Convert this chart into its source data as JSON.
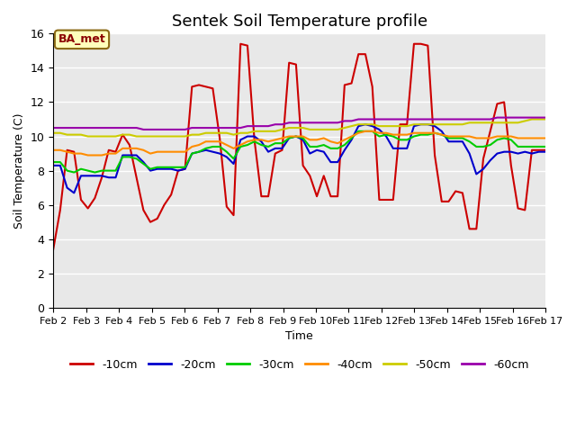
{
  "title": "Sentek Soil Temperature profile",
  "xlabel": "Time",
  "ylabel": "Soil Temperature (C)",
  "ylim": [
    0,
    16
  ],
  "yticks": [
    0,
    2,
    4,
    6,
    8,
    10,
    12,
    14,
    16
  ],
  "xtick_labels": [
    "Feb 2",
    "Feb 3",
    "Feb 4",
    "Feb 5",
    "Feb 6",
    "Feb 7",
    "Feb 8",
    "Feb 9",
    "Feb 10",
    "Feb 11",
    "Feb 12",
    "Feb 13",
    "Feb 14",
    "Feb 15",
    "Feb 16",
    "Feb 17"
  ],
  "annotation_text": "BA_met",
  "background_color": "#e8e8e8",
  "title_fontsize": 13,
  "tick_fontsize": 8,
  "series": {
    "-10cm": {
      "color": "#cc0000",
      "linewidth": 1.5,
      "values": [
        3.4,
        5.7,
        9.2,
        9.1,
        6.3,
        5.8,
        6.4,
        7.6,
        9.2,
        9.1,
        10.1,
        9.5,
        7.6,
        5.7,
        5.0,
        5.2,
        6.0,
        6.6,
        8.0,
        8.1,
        12.9,
        13.0,
        12.9,
        12.8,
        9.9,
        5.9,
        5.4,
        15.4,
        15.3,
        9.8,
        6.5,
        6.5,
        9.0,
        9.2,
        14.3,
        14.2,
        8.3,
        7.7,
        6.5,
        7.7,
        6.5,
        6.5,
        13.0,
        13.1,
        14.8,
        14.8,
        12.9,
        6.3,
        6.3,
        6.3,
        10.7,
        10.7,
        15.4,
        15.4,
        15.3,
        8.9,
        6.2,
        6.2,
        6.8,
        6.7,
        4.6,
        4.6,
        8.7,
        10.3,
        11.9,
        12.0,
        8.3,
        5.8,
        5.7,
        9.2,
        9.2,
        9.2
      ]
    },
    "-20cm": {
      "color": "#0000cc",
      "linewidth": 1.5,
      "values": [
        8.3,
        8.3,
        7.0,
        6.7,
        7.7,
        7.7,
        7.7,
        7.7,
        7.6,
        7.6,
        8.9,
        8.9,
        8.9,
        8.5,
        8.0,
        8.1,
        8.1,
        8.1,
        8.0,
        8.1,
        9.0,
        9.1,
        9.2,
        9.1,
        9.0,
        8.8,
        8.4,
        9.8,
        10.0,
        10.0,
        9.7,
        9.1,
        9.3,
        9.3,
        9.9,
        10.0,
        9.8,
        9.0,
        9.2,
        9.1,
        8.5,
        8.5,
        9.2,
        9.8,
        10.6,
        10.7,
        10.6,
        10.4,
        10.0,
        9.3,
        9.3,
        9.3,
        10.6,
        10.7,
        10.7,
        10.6,
        10.3,
        9.7,
        9.7,
        9.7,
        9.0,
        7.8,
        8.1,
        8.6,
        9.0,
        9.1,
        9.1,
        9.0,
        9.1,
        9.0,
        9.1,
        9.1
      ]
    },
    "-30cm": {
      "color": "#00cc00",
      "linewidth": 1.5,
      "values": [
        8.5,
        8.5,
        8.0,
        7.9,
        8.1,
        8.0,
        7.9,
        8.0,
        8.0,
        8.0,
        8.8,
        8.8,
        8.7,
        8.4,
        8.1,
        8.2,
        8.2,
        8.2,
        8.2,
        8.2,
        9.0,
        9.1,
        9.3,
        9.4,
        9.4,
        9.1,
        8.7,
        9.4,
        9.5,
        9.7,
        9.5,
        9.4,
        9.6,
        9.6,
        9.9,
        10.0,
        9.9,
        9.4,
        9.4,
        9.5,
        9.3,
        9.3,
        9.5,
        9.9,
        10.3,
        10.3,
        10.3,
        10.0,
        10.1,
        10.0,
        9.8,
        9.8,
        10.0,
        10.1,
        10.1,
        10.2,
        10.1,
        9.9,
        9.9,
        9.9,
        9.7,
        9.4,
        9.4,
        9.5,
        9.8,
        9.9,
        9.8,
        9.4,
        9.4,
        9.4,
        9.4,
        9.4
      ]
    },
    "-40cm": {
      "color": "#ff8c00",
      "linewidth": 1.5,
      "values": [
        9.2,
        9.2,
        9.1,
        9.0,
        9.0,
        8.9,
        8.9,
        8.9,
        9.0,
        9.0,
        9.3,
        9.3,
        9.3,
        9.2,
        9.0,
        9.1,
        9.1,
        9.1,
        9.1,
        9.1,
        9.4,
        9.5,
        9.7,
        9.7,
        9.7,
        9.5,
        9.3,
        9.5,
        9.7,
        9.8,
        9.8,
        9.7,
        9.8,
        9.9,
        10.0,
        10.0,
        10.0,
        9.8,
        9.8,
        9.9,
        9.7,
        9.6,
        9.8,
        10.0,
        10.2,
        10.3,
        10.3,
        10.2,
        10.2,
        10.1,
        10.1,
        10.1,
        10.2,
        10.2,
        10.2,
        10.2,
        10.1,
        10.0,
        10.0,
        10.0,
        10.0,
        9.9,
        9.9,
        9.9,
        10.0,
        10.0,
        10.0,
        9.9,
        9.9,
        9.9,
        9.9,
        9.9
      ]
    },
    "-50cm": {
      "color": "#cccc00",
      "linewidth": 1.5,
      "values": [
        10.2,
        10.2,
        10.1,
        10.1,
        10.1,
        10.0,
        10.0,
        10.0,
        10.0,
        10.0,
        10.1,
        10.1,
        10.0,
        10.0,
        10.0,
        10.0,
        10.0,
        10.0,
        10.0,
        10.0,
        10.1,
        10.1,
        10.2,
        10.2,
        10.2,
        10.2,
        10.1,
        10.2,
        10.2,
        10.3,
        10.3,
        10.3,
        10.3,
        10.4,
        10.5,
        10.5,
        10.5,
        10.4,
        10.4,
        10.4,
        10.4,
        10.4,
        10.5,
        10.6,
        10.7,
        10.7,
        10.7,
        10.6,
        10.6,
        10.6,
        10.6,
        10.6,
        10.7,
        10.7,
        10.7,
        10.7,
        10.7,
        10.7,
        10.7,
        10.7,
        10.8,
        10.8,
        10.8,
        10.8,
        10.8,
        10.8,
        10.8,
        10.8,
        10.9,
        11.0,
        11.0,
        11.0
      ]
    },
    "-60cm": {
      "color": "#9900aa",
      "linewidth": 1.5,
      "values": [
        10.5,
        10.5,
        10.5,
        10.5,
        10.5,
        10.5,
        10.5,
        10.5,
        10.5,
        10.5,
        10.5,
        10.5,
        10.5,
        10.4,
        10.4,
        10.4,
        10.4,
        10.4,
        10.4,
        10.4,
        10.5,
        10.5,
        10.5,
        10.5,
        10.5,
        10.5,
        10.5,
        10.5,
        10.6,
        10.6,
        10.6,
        10.6,
        10.7,
        10.7,
        10.8,
        10.8,
        10.8,
        10.8,
        10.8,
        10.8,
        10.8,
        10.8,
        10.9,
        10.9,
        11.0,
        11.0,
        11.0,
        11.0,
        11.0,
        11.0,
        11.0,
        11.0,
        11.0,
        11.0,
        11.0,
        11.0,
        11.0,
        11.0,
        11.0,
        11.0,
        11.0,
        11.0,
        11.0,
        11.0,
        11.1,
        11.1,
        11.1,
        11.1,
        11.1,
        11.1,
        11.1,
        11.1
      ]
    }
  }
}
